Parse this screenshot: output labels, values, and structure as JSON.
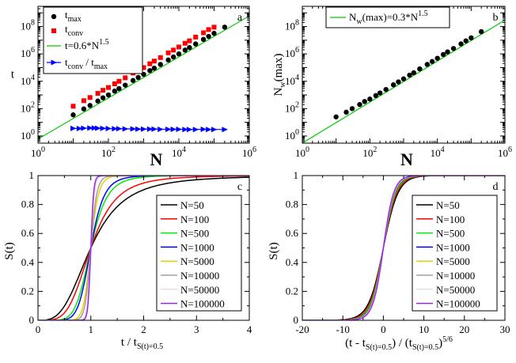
{
  "chart_data": [
    {
      "panel": "a",
      "type": "scatter",
      "xlabel": "N",
      "ylabel": "t",
      "xscale": "log",
      "yscale": "log",
      "xlim": [
        1,
        1000000
      ],
      "ylim": [
        0.3,
        3000000000
      ],
      "xticks": [
        "10^0",
        "10^2",
        "10^4",
        "10^6"
      ],
      "yticks": [
        "10^0",
        "10^2",
        "10^4",
        "10^6",
        "10^8"
      ],
      "legend": [
        {
          "label": "t",
          "sub": "max",
          "sup": "",
          "color": "#000000",
          "marker": "circle"
        },
        {
          "label": "t",
          "sub": "conv",
          "sup": "",
          "color": "#ff0000",
          "marker": "square"
        },
        {
          "label": "t=0.6*N",
          "sub": "",
          "sup": "1.5",
          "color": "#00cc00",
          "marker": "line"
        },
        {
          "label": "t",
          "sub": "conv",
          "sup": "",
          "label2": " / t",
          "sub2": "max",
          "color": "#0000ff",
          "marker": "triangle"
        }
      ],
      "series": [
        {
          "name": "t_max",
          "color": "#000000",
          "marker": "circle",
          "x": [
            10,
            20,
            30,
            50,
            70,
            100,
            150,
            200,
            300,
            500,
            700,
            1000,
            1500,
            2000,
            3000,
            5000,
            7000,
            10000,
            15000,
            20000,
            30000,
            50000,
            70000,
            100000,
            200000
          ],
          "y": [
            35,
            95,
            170,
            360,
            620,
            1000,
            1900,
            2900,
            5200,
            11500,
            19000,
            32000,
            60000,
            90000,
            170000,
            360000,
            600000,
            1000000,
            1900000,
            2900000,
            5300000,
            11500000,
            19000000,
            32000000,
            90000000
          ]
        },
        {
          "name": "t_conv",
          "color": "#ff0000",
          "marker": "square",
          "x": [
            10,
            20,
            30,
            50,
            70,
            100,
            150,
            200,
            300,
            500,
            700,
            1000,
            1500,
            2000,
            3000,
            5000,
            7000,
            10000,
            15000,
            20000,
            30000,
            50000,
            70000,
            100000
          ],
          "y": [
            150,
            380,
            650,
            1300,
            2200,
            3500,
            6500,
            10000,
            18000,
            40000,
            62000,
            100000,
            190000,
            300000,
            540000,
            1200000,
            1900000,
            3200000,
            6000000,
            9000000,
            17000000,
            35000000,
            60000000,
            90000000
          ]
        },
        {
          "name": "t_conv / t_max",
          "color": "#0000ff",
          "marker": "triangle",
          "x": [
            10,
            15,
            20,
            30,
            40,
            50,
            70,
            100,
            150,
            200,
            300,
            500,
            700,
            1000,
            1500,
            2000,
            3000,
            5000,
            7000,
            10000,
            15000,
            20000,
            30000,
            50000,
            70000,
            100000,
            200000
          ],
          "y": [
            3.6,
            3.5,
            3.7,
            3.8,
            3.8,
            3.7,
            3.6,
            3.5,
            3.4,
            3.4,
            3.3,
            3.3,
            3.2,
            3.2,
            3.2,
            3.2,
            3.1,
            3.1,
            3.1,
            3.1,
            3.0,
            3.0,
            3.0,
            3.1,
            3.0,
            3.0,
            3.0
          ]
        }
      ],
      "fit_line": {
        "name": "t=0.6*N^1.5",
        "a": 0.6,
        "b": 1.5,
        "color": "#00cc00"
      }
    },
    {
      "panel": "b",
      "type": "scatter",
      "xlabel": "N",
      "ylabel": "N_w(max)",
      "xscale": "log",
      "yscale": "log",
      "xlim": [
        1,
        1000000
      ],
      "ylim": [
        0.3,
        3000000000
      ],
      "xticks": [
        "10^0",
        "10^2",
        "10^4",
        "10^6"
      ],
      "yticks": [
        "10^0",
        "10^2",
        "10^4",
        "10^6",
        "10^8"
      ],
      "legend": [
        {
          "label": "N",
          "sub": "w",
          "sup": "1.5",
          "label_mid": "(max)=0.3*N",
          "color": "#00cc00",
          "marker": "line"
        }
      ],
      "series": [
        {
          "name": "N_w(max)",
          "color": "#000000",
          "marker": "circle",
          "x": [
            10,
            20,
            30,
            50,
            70,
            100,
            150,
            200,
            300,
            500,
            700,
            1000,
            1500,
            2000,
            3000,
            5000,
            7000,
            10000,
            15000,
            20000,
            30000,
            50000,
            70000,
            100000,
            200000
          ],
          "y": [
            25,
            55,
            100,
            200,
            330,
            500,
            900,
            1400,
            2500,
            5500,
            9000,
            15000,
            28000,
            42000,
            80000,
            170000,
            280000,
            480000,
            900000,
            1400000,
            2500000,
            5400000,
            9000000,
            15000000,
            42000000
          ]
        }
      ],
      "fit_line": {
        "name": "N_w(max)=0.3*N^1.5",
        "a": 0.3,
        "b": 1.5,
        "color": "#00cc00"
      }
    },
    {
      "panel": "c",
      "type": "line",
      "xlabel": "t / t",
      "xlabel_sub": "S(t)=0.5",
      "ylabel": "S(t)",
      "xlim": [
        0,
        4
      ],
      "ylim": [
        0,
        1
      ],
      "xticks": [
        "0",
        "1",
        "2",
        "3",
        "4"
      ],
      "yticks": [
        "0",
        "0.2",
        "0.4",
        "0.6",
        "0.8",
        "1"
      ],
      "series": [
        {
          "name": "N=50",
          "color": "#000000",
          "k": 3.2
        },
        {
          "name": "N=100",
          "color": "#ff0000",
          "k": 4.2
        },
        {
          "name": "N=500",
          "color": "#00ee00",
          "k": 6.5
        },
        {
          "name": "N=1000",
          "color": "#0000ff",
          "k": 8
        },
        {
          "name": "N=5000",
          "color": "#e8d000",
          "k": 14
        },
        {
          "name": "N=10000",
          "color": "#a0a0a0",
          "k": 18
        },
        {
          "name": "N=50000",
          "color": "#e0e0e0",
          "k": 30
        },
        {
          "name": "N=100000",
          "color": "#a020f0",
          "k": 38
        }
      ]
    },
    {
      "panel": "d",
      "type": "line",
      "xlabel": "(t - t",
      "xlabel_sub1": "S(t)=0.5",
      "xlabel_mid": ") / (t",
      "xlabel_sub2": "S(t)=0.5",
      "xlabel_end": ")",
      "xlabel_sup": "5/6",
      "ylabel": "S(t)",
      "xlim": [
        -20,
        30
      ],
      "ylim": [
        0,
        1
      ],
      "xticks": [
        "-20",
        "-10",
        "0",
        "10",
        "20",
        "30"
      ],
      "yticks": [
        "0",
        "0.2",
        "0.4",
        "0.6",
        "0.8",
        "1"
      ],
      "series": [
        {
          "name": "N=50",
          "color": "#000000",
          "k": 0.55
        },
        {
          "name": "N=100",
          "color": "#ff0000",
          "k": 0.6
        },
        {
          "name": "N=500",
          "color": "#00ee00",
          "k": 0.65
        },
        {
          "name": "N=1000",
          "color": "#0000ff",
          "k": 0.7
        },
        {
          "name": "N=5000",
          "color": "#e8d000",
          "k": 0.72
        },
        {
          "name": "N=10000",
          "color": "#a0a0a0",
          "k": 0.74
        },
        {
          "name": "N=50000",
          "color": "#e0e0e0",
          "k": 0.76
        },
        {
          "name": "N=100000",
          "color": "#a020f0",
          "k": 0.78
        }
      ]
    }
  ]
}
